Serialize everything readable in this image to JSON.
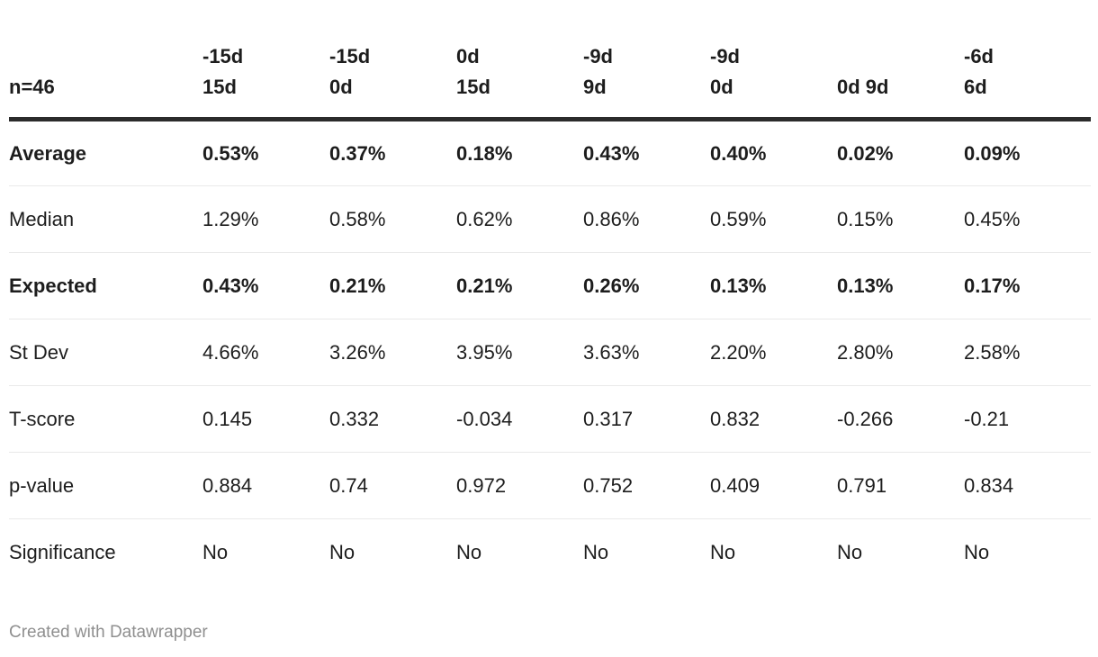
{
  "chart_data": {
    "type": "table",
    "corner_label": "n=46",
    "columns": [
      "-15d 15d",
      "-15d 0d",
      "0d 15d",
      "-9d 9d",
      "-9d 0d",
      "0d 9d",
      "-6d 6d"
    ],
    "columns_lines": [
      [
        "-15d",
        "15d"
      ],
      [
        "-15d",
        "0d"
      ],
      [
        "0d",
        "15d"
      ],
      [
        "-9d",
        "9d"
      ],
      [
        "-9d",
        "0d"
      ],
      [
        "0d 9d"
      ],
      [
        "-6d",
        "6d"
      ]
    ],
    "rows": [
      {
        "label": "Average",
        "bold": true,
        "values": [
          "0.53%",
          "0.37%",
          "0.18%",
          "0.43%",
          "0.40%",
          "0.02%",
          "0.09%"
        ]
      },
      {
        "label": "Median",
        "bold": false,
        "values": [
          "1.29%",
          "0.58%",
          "0.62%",
          "0.86%",
          "0.59%",
          "0.15%",
          "0.45%"
        ]
      },
      {
        "label": "Expected",
        "bold": true,
        "values": [
          "0.43%",
          "0.21%",
          "0.21%",
          "0.26%",
          "0.13%",
          "0.13%",
          "0.17%"
        ]
      },
      {
        "label": "St Dev",
        "bold": false,
        "values": [
          "4.66%",
          "3.26%",
          "3.95%",
          "3.63%",
          "2.20%",
          "2.80%",
          "2.58%"
        ]
      },
      {
        "label": "T-score",
        "bold": false,
        "values": [
          "0.145",
          "0.332",
          "-0.034",
          "0.317",
          "0.832",
          "-0.266",
          "-0.21"
        ]
      },
      {
        "label": "p-value",
        "bold": false,
        "values": [
          "0.884",
          "0.74",
          "0.972",
          "0.752",
          "0.409",
          "0.791",
          "0.834"
        ]
      },
      {
        "label": "Significance",
        "bold": false,
        "values": [
          "No",
          "No",
          "No",
          "No",
          "No",
          "No",
          "No"
        ]
      }
    ]
  },
  "footer": {
    "attribution": "Created with Datawrapper"
  },
  "colors": {
    "text": "#1d1d1d",
    "heavy_rule": "#2b2b2b",
    "light_rule": "#e9e9e9",
    "footer_text": "#8f8f8f",
    "background": "#ffffff"
  }
}
